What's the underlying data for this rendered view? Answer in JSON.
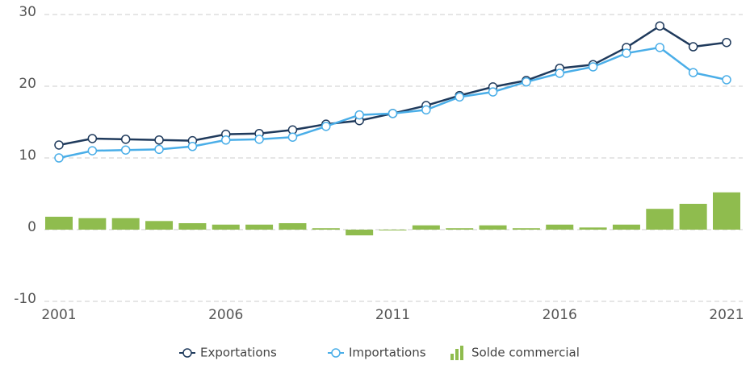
{
  "chart_data": {
    "type": "combo",
    "categories": [
      "2001",
      null,
      null,
      null,
      null,
      "2006",
      null,
      null,
      null,
      null,
      "2011",
      null,
      null,
      null,
      null,
      "2016",
      null,
      null,
      null,
      null,
      "2021"
    ],
    "ylim": [
      -10,
      30
    ],
    "yticks": [
      -10,
      0,
      10,
      20,
      30
    ],
    "grid": true,
    "legend": "bottom",
    "series": [
      {
        "name": "Exportations",
        "type": "line",
        "color": "#1f3a5c",
        "values": [
          11.8,
          12.7,
          12.6,
          12.5,
          12.4,
          13.3,
          13.4,
          13.9,
          14.7,
          15.2,
          16.2,
          17.3,
          18.7,
          19.9,
          20.8,
          22.5,
          23.0,
          25.4,
          28.4,
          25.5,
          26.1
        ]
      },
      {
        "name": "Importations",
        "type": "line",
        "color": "#4aaee8",
        "values": [
          10.0,
          11.0,
          11.1,
          11.2,
          11.6,
          12.5,
          12.6,
          12.9,
          14.4,
          16.0,
          16.2,
          16.7,
          18.5,
          19.2,
          20.6,
          21.8,
          22.7,
          24.6,
          25.4,
          21.9,
          20.9
        ]
      },
      {
        "name": "Solde commercial",
        "type": "bar",
        "color": "#8fbc4e",
        "values": [
          1.8,
          1.6,
          1.6,
          1.2,
          0.9,
          0.7,
          0.7,
          0.9,
          0.2,
          -0.8,
          -0.1,
          0.6,
          0.2,
          0.6,
          0.2,
          0.7,
          0.3,
          0.7,
          2.9,
          3.6,
          5.2
        ]
      }
    ]
  }
}
